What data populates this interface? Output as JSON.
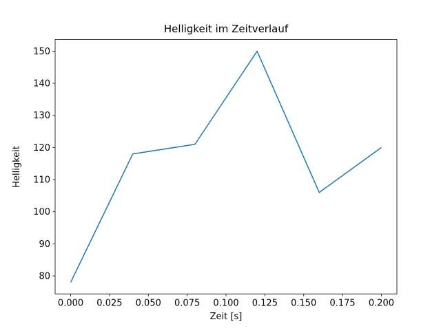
{
  "chart_data": {
    "type": "line",
    "title": "Helligkeit im Zeitverlauf",
    "xlabel": "Zeit [s]",
    "ylabel": "Helligkeit",
    "x": [
      0.0,
      0.04,
      0.08,
      0.12,
      0.16,
      0.2
    ],
    "y": [
      78,
      118,
      121,
      150,
      106,
      120
    ],
    "xticks": [
      0.0,
      0.025,
      0.05,
      0.075,
      0.1,
      0.125,
      0.15,
      0.175,
      0.2
    ],
    "xtick_labels": [
      "0.000",
      "0.025",
      "0.050",
      "0.075",
      "0.100",
      "0.125",
      "0.150",
      "0.175",
      "0.200"
    ],
    "yticks": [
      80,
      90,
      100,
      110,
      120,
      130,
      140,
      150
    ],
    "ytick_labels": [
      "80",
      "90",
      "100",
      "110",
      "120",
      "130",
      "140",
      "150"
    ],
    "xlim": [
      -0.01,
      0.21
    ],
    "ylim": [
      74.4,
      153.6
    ],
    "line_color": "#1f77b4",
    "frame_color": "#000000",
    "grid": false,
    "legend": "none"
  }
}
